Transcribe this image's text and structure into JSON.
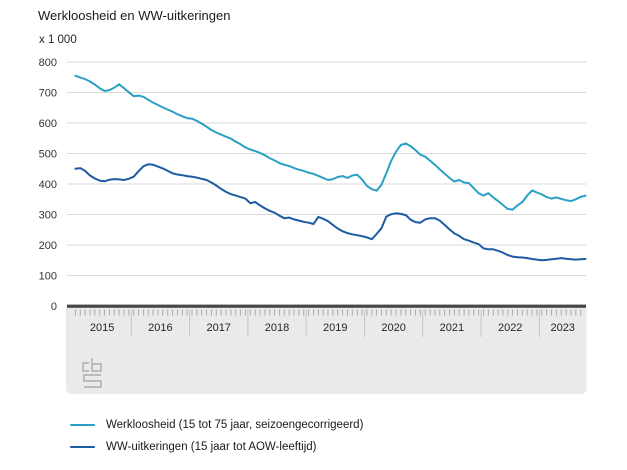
{
  "title": "Werkloosheid en WW-uitkeringen",
  "unit_label": "x 1 000",
  "legend": [
    {
      "label": "Werkloosheid (15 tot 75 jaar, seizoengecorrigeerd)",
      "color": "#2aa0c4"
    },
    {
      "label": "WW-uitkeringen (15 jaar tot AOW-leeftijd)",
      "color": "#1d5ba4"
    }
  ],
  "footer": {
    "logo": "cbs-logo"
  },
  "chart_data": {
    "type": "line",
    "title": "Werkloosheid en WW-uitkeringen",
    "unit": "x 1 000",
    "frequency": "monthly",
    "x_start": "2015-01",
    "x_end": "2023-10",
    "x_tick_years": [
      "2015",
      "2016",
      "2017",
      "2018",
      "2019",
      "2020",
      "2021",
      "2022",
      "2023"
    ],
    "ylim": [
      0,
      800
    ],
    "y_ticks": [
      0,
      100,
      200,
      300,
      400,
      500,
      600,
      700,
      800
    ],
    "grid": true,
    "legend_position": "bottom-left",
    "series": [
      {
        "name": "Werkloosheid (15 tot 75 jaar, seizoengecorrigeerd)",
        "color": "#2aa0c4",
        "values": [
          755,
          749,
          744,
          736,
          726,
          714,
          705,
          708,
          716,
          727,
          714,
          701,
          688,
          690,
          686,
          676,
          667,
          659,
          651,
          644,
          637,
          629,
          622,
          616,
          614,
          607,
          598,
          588,
          577,
          569,
          562,
          555,
          549,
          539,
          530,
          520,
          513,
          508,
          502,
          494,
          485,
          477,
          469,
          463,
          459,
          452,
          447,
          443,
          437,
          433,
          427,
          420,
          413,
          416,
          423,
          426,
          420,
          428,
          430,
          415,
          394,
          383,
          378,
          398,
          435,
          476,
          506,
          528,
          533,
          524,
          511,
          496,
          490,
          476,
          463,
          448,
          434,
          420,
          408,
          413,
          405,
          403,
          386,
          370,
          362,
          370,
          356,
          344,
          331,
          318,
          316,
          330,
          341,
          362,
          379,
          372,
          366,
          357,
          352,
          356,
          351,
          347,
          344,
          350,
          358,
          362
        ]
      },
      {
        "name": "WW-uitkeringen (15 jaar tot AOW-leeftijd)",
        "color": "#1d5ba4",
        "values": [
          450,
          452,
          443,
          428,
          418,
          411,
          409,
          414,
          416,
          415,
          413,
          417,
          424,
          442,
          458,
          465,
          463,
          457,
          451,
          443,
          435,
          431,
          429,
          426,
          424,
          421,
          417,
          413,
          405,
          395,
          384,
          374,
          367,
          362,
          357,
          352,
          337,
          341,
          330,
          320,
          312,
          306,
          296,
          288,
          290,
          284,
          280,
          276,
          273,
          269,
          292,
          286,
          278,
          266,
          254,
          245,
          239,
          235,
          232,
          229,
          225,
          219,
          236,
          255,
          293,
          301,
          304,
          302,
          298,
          283,
          275,
          273,
          284,
          288,
          288,
          280,
          266,
          251,
          238,
          230,
          219,
          214,
          208,
          203,
          189,
          186,
          186,
          181,
          175,
          167,
          162,
          160,
          159,
          157,
          154,
          152,
          150,
          151,
          153,
          155,
          157,
          155,
          153,
          152,
          153,
          154
        ]
      }
    ],
    "style_colors": {
      "gridline": "#d9d9d9",
      "zero_axis": "#474747",
      "footer_panel": "#eaeaea",
      "tick": "#a9a9a9",
      "year_divider": "#c6c6c6",
      "text": "#333333"
    }
  }
}
